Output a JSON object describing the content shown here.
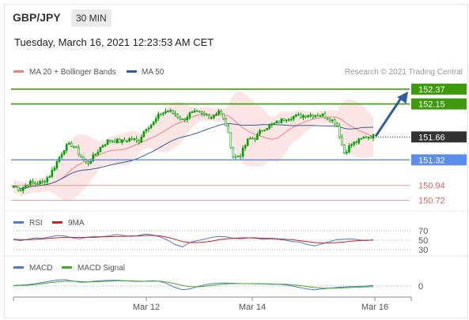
{
  "header": {
    "symbol": "GBP/JPY",
    "timeframe": "30 MIN"
  },
  "datetime": "Tuesday, March 16, 2021 12:23:53 AM CET",
  "legend": {
    "ma20_bb": "MA 20 + Bollinger Bands",
    "ma50": "MA 50",
    "credit": "Research © 2021 Trading Central"
  },
  "colors": {
    "candle": "#00a000",
    "bb_band": "#fbdcdc",
    "ma20": "#f08080",
    "ma50": "#2e5fa0",
    "resistance": "#3e9a0c",
    "pivot": "#5b8def",
    "support": "#e06060",
    "arrow": "#2e5f9a",
    "current": "#333333",
    "rsi": "#5577cc",
    "rsi_ma": "#cc2222",
    "macd": "#5577cc",
    "macd_signal": "#44aa22"
  },
  "chart_data": [
    {
      "type": "candlestick",
      "title": "GBP/JPY",
      "timeframe": "30 MIN",
      "ylim": [
        150.62,
        152.52
      ],
      "x_ticks": [
        "Mar 12",
        "Mar 14",
        "Mar 16"
      ],
      "levels": [
        {
          "name": "resistance 2",
          "value": 152.37,
          "label": "152.37",
          "style": "green-box"
        },
        {
          "name": "resistance 1",
          "value": 152.15,
          "label": "152.15",
          "style": "green-box"
        },
        {
          "name": "last price",
          "value": 151.66,
          "label": "151.66",
          "style": "dark-box"
        },
        {
          "name": "pivot",
          "value": 151.32,
          "label": "151.32",
          "style": "blue-box"
        },
        {
          "name": "support 1",
          "value": 150.94,
          "label": "150.94",
          "style": "red-text"
        },
        {
          "name": "support 2",
          "value": 150.72,
          "label": "150.72",
          "style": "red-text"
        }
      ],
      "price_path": [
        150.93,
        150.88,
        150.98,
        150.97,
        150.99,
        151.1,
        151.31,
        151.51,
        151.55,
        151.4,
        151.26,
        151.38,
        151.53,
        151.61,
        151.6,
        151.59,
        151.64,
        151.59,
        151.8,
        151.86,
        152.01,
        152.05,
        152.0,
        151.91,
        152.0,
        152.02,
        151.98,
        151.96,
        152.06,
        151.82,
        151.34,
        151.41,
        151.63,
        151.65,
        151.79,
        151.83,
        151.88,
        151.94,
        151.96,
        151.97,
        151.99,
        151.99,
        151.99,
        151.94,
        151.86,
        151.42,
        151.55,
        151.6,
        151.67,
        151.67
      ]
    },
    {
      "type": "line",
      "title": "RSI",
      "series": [
        {
          "name": "RSI",
          "ref": "rsi"
        },
        {
          "name": "9MA",
          "ref": "rsi_ma"
        }
      ],
      "levels": [
        70,
        50,
        30
      ],
      "ylim": [
        20,
        80
      ],
      "rsi": [
        51,
        49,
        52,
        55,
        54,
        57,
        60,
        59,
        55,
        53,
        56,
        58,
        57,
        59,
        62,
        60,
        58,
        60,
        63,
        61,
        57,
        50,
        41,
        36,
        45,
        49,
        52,
        56,
        58,
        57,
        54,
        53,
        55,
        54,
        52,
        53,
        52,
        50,
        47,
        46,
        41,
        38,
        42,
        47,
        51,
        52,
        53,
        51,
        49,
        51
      ],
      "rsi_ma": [
        52,
        51,
        51,
        52,
        53,
        54,
        55,
        56,
        56,
        56,
        56,
        56,
        57,
        57,
        58,
        58,
        59,
        59,
        60,
        60,
        59,
        56,
        52,
        47,
        45,
        45,
        46,
        48,
        51,
        53,
        54,
        55,
        55,
        55,
        54,
        54,
        53,
        52,
        51,
        49,
        47,
        45,
        44,
        44,
        45,
        46,
        48,
        49,
        50,
        50
      ]
    },
    {
      "type": "line",
      "title": "MACD",
      "series": [
        {
          "name": "MACD",
          "ref": "macd"
        },
        {
          "name": "MACD Signal",
          "ref": "signal"
        }
      ],
      "levels": [
        0
      ],
      "ylim": [
        -0.5,
        0.5
      ],
      "macd": [
        0.02,
        0.03,
        0.05,
        0.08,
        0.12,
        0.16,
        0.2,
        0.21,
        0.17,
        0.13,
        0.13,
        0.16,
        0.18,
        0.19,
        0.19,
        0.18,
        0.16,
        0.15,
        0.16,
        0.18,
        0.15,
        0.07,
        -0.05,
        -0.12,
        -0.1,
        -0.02,
        0.04,
        0.08,
        0.1,
        0.1,
        0.09,
        0.08,
        0.08,
        0.07,
        0.07,
        0.06,
        0.06,
        0.04,
        0.0,
        -0.05,
        -0.1,
        -0.13,
        -0.1,
        -0.07,
        -0.05,
        -0.03,
        -0.02,
        -0.01,
        0.0,
        0.02
      ],
      "signal": [
        0.01,
        0.02,
        0.03,
        0.05,
        0.08,
        0.11,
        0.14,
        0.16,
        0.16,
        0.15,
        0.14,
        0.14,
        0.15,
        0.16,
        0.17,
        0.17,
        0.17,
        0.16,
        0.16,
        0.16,
        0.16,
        0.13,
        0.08,
        0.02,
        -0.02,
        -0.03,
        -0.01,
        0.02,
        0.05,
        0.07,
        0.08,
        0.08,
        0.08,
        0.08,
        0.07,
        0.07,
        0.06,
        0.06,
        0.04,
        0.02,
        -0.02,
        -0.05,
        -0.07,
        -0.07,
        -0.07,
        -0.06,
        -0.05,
        -0.04,
        -0.03,
        -0.02
      ]
    }
  ],
  "legends": {
    "rsi": "RSI",
    "rsi_ma": "9MA",
    "macd": "MACD",
    "macd_signal": "MACD Signal"
  }
}
